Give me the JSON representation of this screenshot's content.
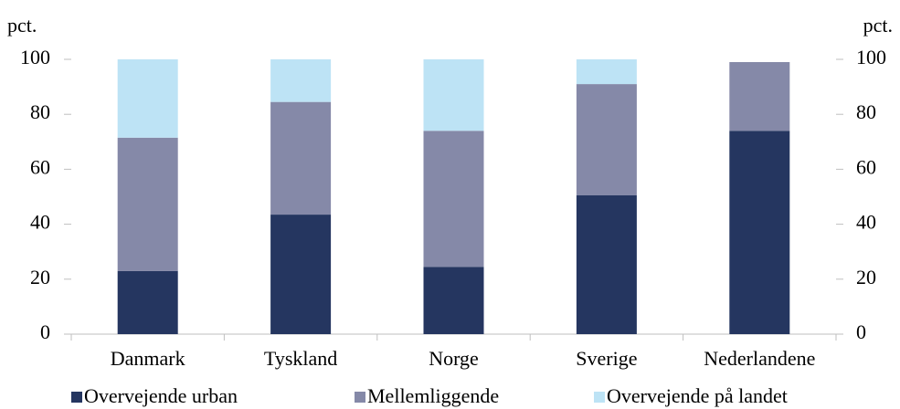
{
  "chart_data": {
    "type": "stacked_bar",
    "y_label": "pct.",
    "y2_label": "pct.",
    "categories": [
      "Danmark",
      "Tyskland",
      "Norge",
      "Sverige",
      "Nederlandene"
    ],
    "series": [
      {
        "name": "Overvejende urban",
        "color": "#253660",
        "values": [
          23,
          43.5,
          24.5,
          50.5,
          74
        ]
      },
      {
        "name": "Mellemliggende",
        "color": "#8589a8",
        "values": [
          48.5,
          41,
          49.5,
          40.5,
          25
        ]
      },
      {
        "name": "Overvejende på landet",
        "color": "#bde3f5",
        "values": [
          28.5,
          15.5,
          26,
          9,
          0
        ]
      }
    ],
    "ylim": [
      0,
      100
    ],
    "yticks": [
      0,
      20,
      40,
      60,
      80,
      100
    ],
    "y2lim": [
      0,
      100
    ],
    "y2ticks": [
      0,
      20,
      40,
      60,
      80,
      100
    ],
    "grid": false
  }
}
